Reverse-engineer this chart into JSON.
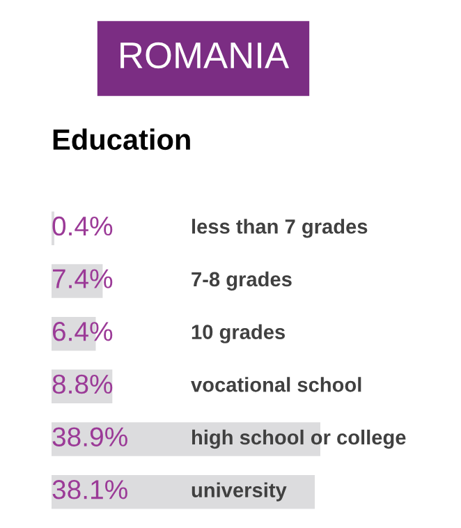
{
  "chart_data": {
    "type": "bar",
    "orientation": "horizontal",
    "title": "ROMANIA",
    "subtitle": "Education",
    "categories": [
      "less than 7 grades",
      "7-8 grades",
      "10 grades",
      "vocational school",
      "high school or college",
      "university"
    ],
    "series": [
      {
        "color": "#dcdcde",
        "values": [
          0.4,
          7.4,
          6.4,
          8.8,
          38.9,
          38.1
        ],
        "value_labels": [
          "0.4%",
          "7.4%",
          "6.4%",
          "8.8%",
          "38.9%",
          "38.1%"
        ]
      }
    ],
    "legend": false
  }
}
